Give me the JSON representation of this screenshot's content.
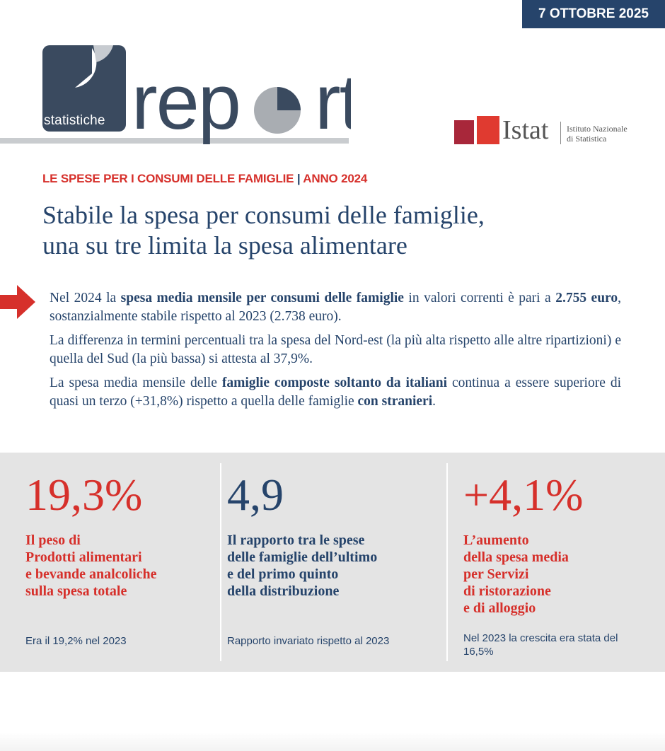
{
  "header": {
    "date": "7 OTTOBRE 2025",
    "logo_small": "statistiche",
    "logo_large": "report",
    "istat_name": "Istat",
    "istat_sub_line1": "Istituto Nazionale",
    "istat_sub_line2": "di Statistica"
  },
  "article": {
    "kicker_topic": "LE SPESE PER I CONSUMI DELLE FAMIGLIE",
    "kicker_sep": " | ",
    "kicker_year": "ANNO 2024",
    "headline_line1": "Stabile la spesa per consumi delle famiglie,",
    "headline_line2": "una su tre limita la spesa alimentare",
    "p1_a": "Nel 2024 la ",
    "p1_b": "spesa media mensile per consumi delle famiglie",
    "p1_c": " in valori correnti è pari a ",
    "p1_d": "2.755 euro",
    "p1_e": ", sostanzialmente stabile rispetto al 2023 (2.738 euro).",
    "p2": "La differenza in termini percentuali tra la spesa del Nord-est (la più alta rispetto alle altre ripartizioni) e quella del Sud (la più bassa) si attesta al 37,9%.",
    "p3_a": "La spesa media mensile delle ",
    "p3_b": "famiglie composte soltanto da italiani",
    "p3_c": " continua a essere superiore di quasi un terzo (+31,8%) rispetto a quella delle famiglie ",
    "p3_d": "con stranieri",
    "p3_e": "."
  },
  "stats": [
    {
      "value": "19,3%",
      "desc_lines": [
        "Il peso di",
        "Prodotti alimentari",
        "e bevande analcoliche",
        "sulla spesa totale"
      ],
      "note": "Era il 19,2% nel 2023"
    },
    {
      "value": "4,9",
      "desc_lines": [
        "Il rapporto tra le spese",
        "delle famiglie dell’ultimo",
        "e del primo quinto",
        "della distribuzione"
      ],
      "note": "Rapporto invariato rispetto al 2023"
    },
    {
      "value": "+4,1%",
      "desc_lines": [
        "L’aumento",
        "della spesa media",
        "per Servizi",
        "di ristorazione",
        "e di alloggio"
      ],
      "note_line1": "Nel 2023 la crescita era stata del",
      "note_line2": "16,5%"
    }
  ],
  "colors": {
    "accent_red": "#d6302b",
    "brand_blue": "#26446b",
    "logo_slate": "#3a4a5f",
    "panel_grey": "#e4e4e4"
  },
  "icons": {
    "arrow": "right-arrow-icon",
    "logo_pie": "pie-chart-icon"
  }
}
